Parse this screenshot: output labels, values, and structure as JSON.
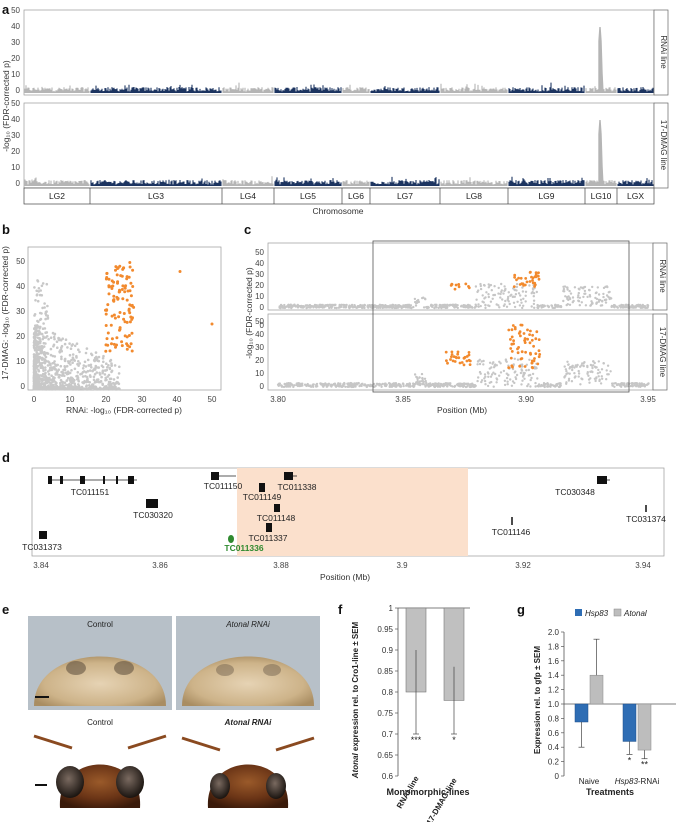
{
  "panels": {
    "a": {
      "label": "a",
      "ylabel": "-log₁₀ (FDR-corrected p)",
      "yticks": [
        "0",
        "10",
        "20",
        "30",
        "40",
        "50"
      ],
      "strips": [
        "RNAi line",
        "17-DMAG line"
      ],
      "xlabel": "Chromosome",
      "chromosomes": [
        "LG2",
        "LG3",
        "LG4",
        "LG5",
        "LG6",
        "LG7",
        "LG8",
        "LG9",
        "LG10",
        "LGX"
      ],
      "colors": {
        "gray": "#b5b5b5",
        "navy": "#1c3460"
      }
    },
    "b": {
      "label": "b",
      "xlabel": "RNAi: -log₁₀ (FDR-corrected p)",
      "ylabel": "17-DMAG: -log₁₀ (FDR-corrected p)",
      "xticks": [
        "0",
        "10",
        "20",
        "30",
        "40",
        "50"
      ],
      "yticks": [
        "0",
        "10",
        "20",
        "30",
        "40",
        "50"
      ],
      "highlight_color": "#f28a2e"
    },
    "c": {
      "label": "c",
      "xlabel": "Position (Mb)",
      "ylabel": "-log₁₀ (FDR-corrected p)",
      "xticks": [
        "3.80",
        "3.85",
        "3.90",
        "3.95"
      ],
      "yticks": [
        "0",
        "10",
        "20",
        "30",
        "40",
        "50"
      ],
      "strips": [
        "RNAi line",
        "17-DMAG line"
      ]
    },
    "d": {
      "label": "d",
      "xlabel": "Position (Mb)",
      "xticks": [
        "3.84",
        "3.86",
        "3.88",
        "3.9",
        "3.92",
        "3.94"
      ],
      "genes": [
        "TC011151",
        "TC030320",
        "TC031373",
        "TC011150",
        "TC011149",
        "TC011338",
        "TC011148",
        "TC011337",
        "TC011336",
        "TC011146",
        "TC030348",
        "TC031374"
      ],
      "highlight_gene": "TC011336",
      "region_color": "#fbe0cc"
    },
    "e": {
      "label": "e",
      "captions": [
        "Control",
        "Atonal RNAi",
        "Control",
        "Atonal RNAi"
      ]
    },
    "f": {
      "label": "f",
      "ylabel_italic": "Atonal",
      "ylabel_rest": " expression rel. to Cro1-line ± SEM",
      "xlabel": "Monomorphic-lines",
      "yticks": [
        "0.6",
        "0.65",
        "0.7",
        "0.75",
        "0.8",
        "0.85",
        "0.9",
        "0.95",
        "1"
      ],
      "significance": [
        "***",
        "*"
      ]
    },
    "g": {
      "label": "g",
      "ylabel": "Expression rel. to gfp ± SEM",
      "xlabel": "Treatments",
      "legend": [
        "Hsp83",
        "Atonal"
      ],
      "yticks": [
        "0",
        "0.2",
        "0.4",
        "0.6",
        "0.8",
        "1.0",
        "1.2",
        "1.4",
        "1.6",
        "1.8",
        "2.0"
      ],
      "significance": [
        "*",
        "**"
      ],
      "colors": {
        "hsp83": "#2e6db4",
        "atonal": "#bdbdbd"
      }
    }
  },
  "chart_data": [
    {
      "type": "bar",
      "title": "",
      "categories": [
        "RNAi-line",
        "17-DMAG-line"
      ],
      "values": [
        0.8,
        0.78
      ],
      "errors": [
        0.1,
        0.08
      ],
      "ylim": [
        0.6,
        1.0
      ],
      "xlabel": "Monomorphic-lines",
      "ylabel": "Atonal expression rel. to Cro1-line ± SEM"
    },
    {
      "type": "bar",
      "title": "",
      "categories": [
        "Naive",
        "Hsp83-RNAi"
      ],
      "series": [
        {
          "name": "Hsp83",
          "values": [
            0.75,
            0.48
          ],
          "errors": [
            0.35,
            0.18
          ]
        },
        {
          "name": "Atonal",
          "values": [
            1.4,
            0.36
          ],
          "errors": [
            0.5,
            0.12
          ]
        }
      ],
      "ylim": [
        0,
        2.0
      ],
      "xlabel": "Treatments",
      "ylabel": "Expression rel. to gfp ± SEM"
    }
  ]
}
